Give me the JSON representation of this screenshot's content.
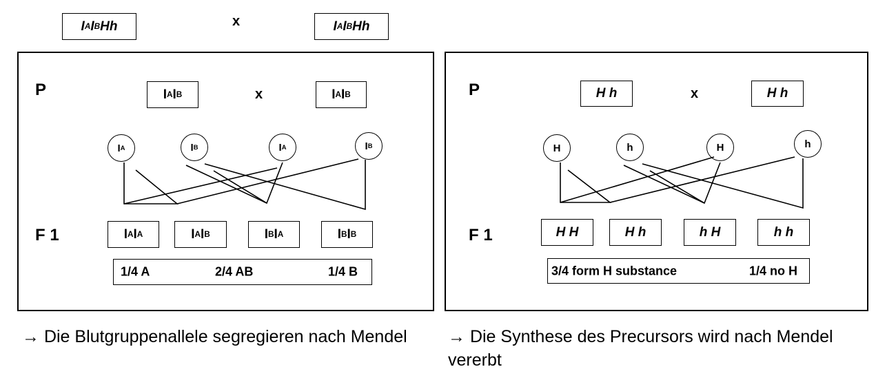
{
  "top": {
    "left_genotype": {
      "a1": "A",
      "b1": "B",
      "suffix": "Hh"
    },
    "cross_sign": "x",
    "right_genotype": {
      "a1": "A",
      "b1": "B",
      "suffix": "Hh"
    }
  },
  "left_panel": {
    "p_label": "P",
    "cross_sign": "x",
    "parents": [
      {
        "a": "A",
        "b": "B"
      },
      {
        "a": "A",
        "b": "B"
      }
    ],
    "gametes": [
      "A",
      "B",
      "A",
      "B"
    ],
    "f1_label": "F 1",
    "offspring": [
      {
        "a": "A",
        "b": "A"
      },
      {
        "a": "A",
        "b": "B"
      },
      {
        "a": "B",
        "b": "A"
      },
      {
        "a": "B",
        "b": "B"
      }
    ],
    "ratios": [
      "1/4 A",
      "2/4  AB",
      "1/4 B"
    ]
  },
  "right_panel": {
    "p_label": "P",
    "cross_sign": "x",
    "parents": [
      "H h",
      "H h"
    ],
    "gametes": [
      "H",
      "h",
      "H",
      "h"
    ],
    "f1_label": "F 1",
    "offspring": [
      "H H",
      "H h",
      "h H",
      "h h"
    ],
    "ratios": [
      "3/4  form H substance",
      "1/4 no H"
    ]
  },
  "notes": {
    "arrow": "→",
    "left": "Die Blutgruppenallele segregieren nach Mendel",
    "right": "Die Synthese des Precursors wird nach Mendel vererbt"
  }
}
